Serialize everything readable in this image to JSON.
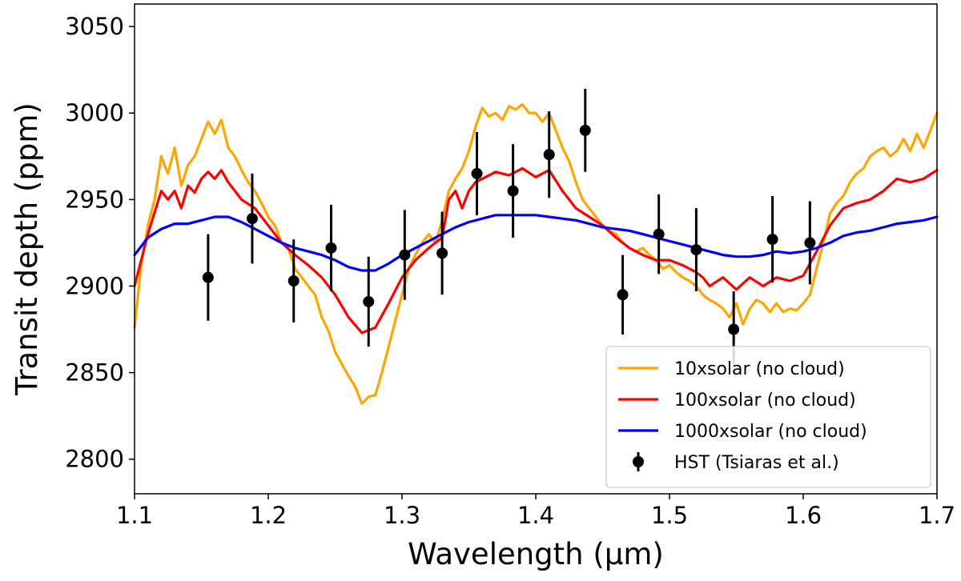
{
  "chart_data": {
    "type": "line",
    "xlabel": "Wavelength (μm)",
    "ylabel": "Transit depth (ppm)",
    "xlim": [
      1.1,
      1.7
    ],
    "ylim": [
      2780,
      3063
    ],
    "xticks": [
      1.1,
      1.2,
      1.3,
      1.4,
      1.5,
      1.6,
      1.7
    ],
    "xtick_labels": [
      "1.1",
      "1.2",
      "1.3",
      "1.4",
      "1.5",
      "1.6",
      "1.7"
    ],
    "yticks": [
      2800,
      2850,
      2900,
      2950,
      3000,
      3050
    ],
    "ytick_labels": [
      "2800",
      "2850",
      "2900",
      "2950",
      "3000",
      "3050"
    ],
    "legend_position": "bottom-right",
    "series": [
      {
        "name": "10xsolar (no cloud)",
        "color": "#FFA500",
        "x": [
          1.1,
          1.105,
          1.11,
          1.115,
          1.12,
          1.125,
          1.13,
          1.135,
          1.14,
          1.145,
          1.15,
          1.155,
          1.16,
          1.165,
          1.17,
          1.175,
          1.18,
          1.185,
          1.19,
          1.195,
          1.2,
          1.205,
          1.21,
          1.215,
          1.22,
          1.225,
          1.23,
          1.235,
          1.24,
          1.245,
          1.25,
          1.255,
          1.26,
          1.265,
          1.27,
          1.275,
          1.28,
          1.285,
          1.29,
          1.295,
          1.3,
          1.305,
          1.31,
          1.315,
          1.32,
          1.325,
          1.33,
          1.335,
          1.34,
          1.345,
          1.35,
          1.355,
          1.36,
          1.365,
          1.37,
          1.375,
          1.38,
          1.385,
          1.39,
          1.395,
          1.4,
          1.405,
          1.41,
          1.415,
          1.42,
          1.425,
          1.43,
          1.435,
          1.44,
          1.445,
          1.45,
          1.455,
          1.46,
          1.465,
          1.47,
          1.475,
          1.48,
          1.485,
          1.49,
          1.495,
          1.5,
          1.505,
          1.51,
          1.515,
          1.52,
          1.525,
          1.53,
          1.535,
          1.54,
          1.545,
          1.55,
          1.555,
          1.56,
          1.565,
          1.57,
          1.575,
          1.58,
          1.585,
          1.59,
          1.595,
          1.6,
          1.605,
          1.61,
          1.615,
          1.62,
          1.625,
          1.63,
          1.635,
          1.64,
          1.645,
          1.65,
          1.655,
          1.66,
          1.665,
          1.67,
          1.675,
          1.68,
          1.685,
          1.69,
          1.695,
          1.7
        ],
        "values": [
          2876,
          2912,
          2935,
          2950,
          2975,
          2965,
          2980,
          2958,
          2970,
          2975,
          2985,
          2995,
          2988,
          2996,
          2980,
          2975,
          2967,
          2960,
          2955,
          2948,
          2940,
          2935,
          2925,
          2922,
          2910,
          2905,
          2900,
          2895,
          2882,
          2874,
          2862,
          2855,
          2848,
          2842,
          2832,
          2836,
          2837,
          2850,
          2865,
          2880,
          2895,
          2910,
          2918,
          2925,
          2930,
          2925,
          2938,
          2955,
          2962,
          2968,
          2978,
          2992,
          3003,
          2998,
          3000,
          2996,
          3004,
          3002,
          3005,
          3000,
          3000,
          2995,
          3000,
          2990,
          2980,
          2972,
          2960,
          2950,
          2945,
          2940,
          2935,
          2932,
          2930,
          2925,
          2922,
          2920,
          2922,
          2918,
          2915,
          2910,
          2912,
          2908,
          2905,
          2903,
          2900,
          2895,
          2892,
          2890,
          2887,
          2882,
          2890,
          2878,
          2887,
          2892,
          2890,
          2885,
          2890,
          2885,
          2887,
          2886,
          2890,
          2895,
          2910,
          2925,
          2942,
          2948,
          2952,
          2960,
          2965,
          2968,
          2975,
          2978,
          2980,
          2975,
          2978,
          2985,
          2978,
          2988,
          2980,
          2990,
          3000
        ]
      },
      {
        "name": "100xsolar (no cloud)",
        "color": "#FF0000",
        "x": [
          1.1,
          1.11,
          1.12,
          1.125,
          1.13,
          1.135,
          1.14,
          1.145,
          1.15,
          1.155,
          1.16,
          1.165,
          1.17,
          1.18,
          1.19,
          1.2,
          1.21,
          1.22,
          1.23,
          1.24,
          1.25,
          1.26,
          1.27,
          1.28,
          1.29,
          1.3,
          1.31,
          1.32,
          1.33,
          1.335,
          1.34,
          1.345,
          1.35,
          1.355,
          1.36,
          1.37,
          1.38,
          1.39,
          1.4,
          1.41,
          1.42,
          1.43,
          1.44,
          1.45,
          1.46,
          1.47,
          1.48,
          1.49,
          1.5,
          1.51,
          1.52,
          1.525,
          1.53,
          1.54,
          1.55,
          1.56,
          1.57,
          1.58,
          1.59,
          1.6,
          1.61,
          1.62,
          1.63,
          1.64,
          1.65,
          1.66,
          1.67,
          1.68,
          1.69,
          1.7
        ],
        "values": [
          2900,
          2930,
          2955,
          2950,
          2955,
          2945,
          2958,
          2954,
          2962,
          2966,
          2962,
          2967,
          2960,
          2950,
          2945,
          2935,
          2925,
          2918,
          2912,
          2905,
          2895,
          2882,
          2873,
          2876,
          2890,
          2905,
          2915,
          2922,
          2928,
          2950,
          2955,
          2945,
          2955,
          2960,
          2962,
          2966,
          2964,
          2968,
          2963,
          2967,
          2955,
          2945,
          2940,
          2935,
          2928,
          2922,
          2918,
          2915,
          2915,
          2912,
          2908,
          2905,
          2900,
          2905,
          2898,
          2905,
          2900,
          2905,
          2903,
          2906,
          2920,
          2935,
          2945,
          2948,
          2950,
          2955,
          2962,
          2960,
          2962,
          2967
        ]
      },
      {
        "name": "1000xsolar (no cloud)",
        "color": "#0000FF",
        "x": [
          1.1,
          1.11,
          1.12,
          1.13,
          1.14,
          1.15,
          1.16,
          1.17,
          1.18,
          1.19,
          1.2,
          1.21,
          1.22,
          1.23,
          1.24,
          1.25,
          1.26,
          1.27,
          1.28,
          1.29,
          1.3,
          1.31,
          1.32,
          1.33,
          1.34,
          1.35,
          1.36,
          1.37,
          1.38,
          1.39,
          1.4,
          1.41,
          1.42,
          1.43,
          1.44,
          1.45,
          1.46,
          1.47,
          1.48,
          1.49,
          1.5,
          1.51,
          1.52,
          1.53,
          1.54,
          1.55,
          1.56,
          1.57,
          1.58,
          1.59,
          1.6,
          1.61,
          1.62,
          1.63,
          1.64,
          1.65,
          1.66,
          1.67,
          1.68,
          1.69,
          1.7
        ],
        "values": [
          2918,
          2928,
          2933,
          2936,
          2936,
          2938,
          2940,
          2940,
          2937,
          2933,
          2929,
          2925,
          2922,
          2920,
          2918,
          2915,
          2911,
          2909,
          2909,
          2913,
          2918,
          2922,
          2926,
          2930,
          2934,
          2937,
          2939,
          2941,
          2941,
          2941,
          2941,
          2940,
          2939,
          2938,
          2936,
          2934,
          2933,
          2932,
          2930,
          2928,
          2926,
          2924,
          2922,
          2920,
          2918,
          2917,
          2917,
          2918,
          2920,
          2919,
          2920,
          2922,
          2925,
          2929,
          2931,
          2932,
          2934,
          2936,
          2937,
          2938,
          2940
        ]
      }
    ],
    "errorbar_series": {
      "name": "HST (Tsiaras et al.)",
      "color": "#000000",
      "x": [
        1.155,
        1.188,
        1.219,
        1.247,
        1.275,
        1.302,
        1.33,
        1.356,
        1.383,
        1.41,
        1.437,
        1.465,
        1.492,
        1.52,
        1.548,
        1.577,
        1.605
      ],
      "values": [
        2905,
        2939,
        2903,
        2922,
        2891,
        2918,
        2919,
        2965,
        2955,
        2976,
        2990,
        2895,
        2930,
        2921,
        2875,
        2927,
        2925
      ],
      "errors": [
        25,
        26,
        24,
        25,
        26,
        26,
        24,
        24,
        27,
        25,
        24,
        23,
        23,
        24,
        22,
        25,
        24
      ]
    }
  }
}
